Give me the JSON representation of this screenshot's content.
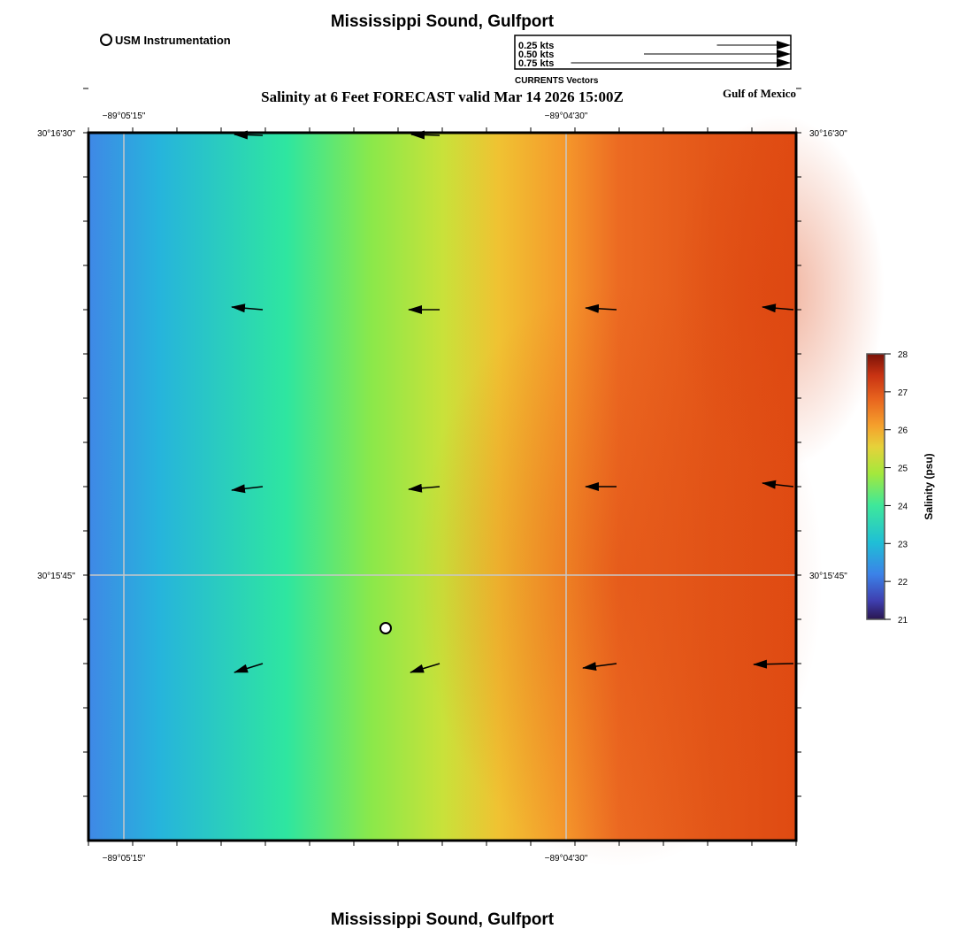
{
  "header": {
    "title": "Mississippi Sound, Gulfport",
    "subtitle": "Salinity at 6 Feet FORECAST valid Mar 14 2026 15:00Z",
    "region_label": "Gulf of Mexico",
    "footer_title": "Mississippi Sound, Gulfport"
  },
  "station_legend": {
    "label": "USM Instrumentation"
  },
  "vector_legend": {
    "caption": "CURRENTS Vectors",
    "entries": [
      {
        "label": "0.25 kts",
        "speed": 0.25
      },
      {
        "label": "0.50 kts",
        "speed": 0.5
      },
      {
        "label": "0.75 kts",
        "speed": 0.75
      }
    ]
  },
  "map": {
    "top_ticks": [
      "−89°05'15\"",
      "−89°04'30\""
    ],
    "bottom_ticks": [
      "−89°05'15\"",
      "−89°04'30\""
    ],
    "left_ticks": [
      "30°16'30\"",
      "30°15'45\""
    ],
    "right_ticks": [
      "30°16'30\"",
      "30°15'45\""
    ],
    "grid": true,
    "station": {
      "lon_frac": 0.42,
      "lat_frac": 0.7
    }
  },
  "colorbar": {
    "label": "Salinity (psu)",
    "min": 21,
    "max": 28,
    "ticks": [
      "28",
      "27",
      "26",
      "25",
      "24",
      "23",
      "22",
      "21"
    ]
  },
  "vectors": [
    {
      "u": -0.35,
      "v": 0.03
    },
    {
      "u": -0.35,
      "v": 0.0
    },
    {
      "u": -0.35,
      "v": 0.02
    },
    {
      "u": -0.35,
      "v": 0.03
    },
    {
      "u": -0.35,
      "v": -0.04
    },
    {
      "u": -0.35,
      "v": -0.03
    },
    {
      "u": -0.35,
      "v": 0.0
    },
    {
      "u": -0.35,
      "v": 0.04
    },
    {
      "u": -0.32,
      "v": -0.1
    },
    {
      "u": -0.33,
      "v": -0.1
    },
    {
      "u": -0.38,
      "v": -0.05
    },
    {
      "u": -0.45,
      "v": -0.01
    }
  ],
  "colors": {
    "fresh": "#3f86e6",
    "mid": "#9be843",
    "salty": "#de4a12",
    "frame": "#000000",
    "grid": "#c8c8c8"
  }
}
